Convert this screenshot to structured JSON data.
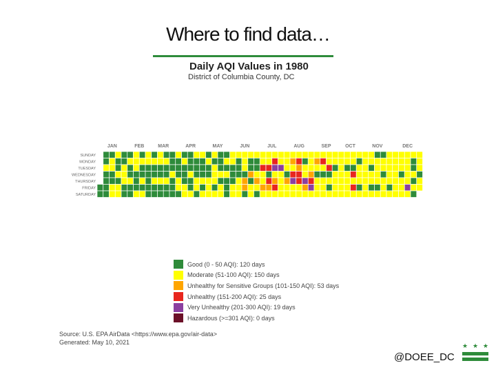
{
  "slide": {
    "title": "Where to find data…"
  },
  "colors": {
    "good": "#2e8b3a",
    "moderate": "#ffff00",
    "usg": "#ffa500",
    "unhealthy": "#e8261e",
    "very_unhealthy": "#8b3fa0",
    "hazardous": "#6b1028",
    "accent": "#2e8b3a"
  },
  "chart_data": {
    "type": "heatmap",
    "title": "Daily AQI Values in 1980",
    "subtitle": "District of Columbia County, DC",
    "year": 1980,
    "months": [
      "JAN",
      "FEB",
      "MAR",
      "APR",
      "MAY",
      "JUN",
      "JUL",
      "AUG",
      "SEP",
      "OCT",
      "NOV",
      "DEC"
    ],
    "weekdays": [
      "SUNDAY",
      "MONDAY",
      "TUESDAY",
      "WEDNESDAY",
      "THURSDAY",
      "FRIDAY",
      "SATURDAY"
    ],
    "weeks": [
      "-----GG",
      "GGYGGGG",
      "GYYGGYY",
      "YGGYGYY",
      "GGYYYGG",
      "GYGGYGG",
      "YYYGGGY",
      "GYGGYGY",
      "YYGGGGG",
      "GYGGYGG",
      "YYGGYGG",
      "GYGGYGG",
      "GGGYGGG",
      "YGGGYYG",
      "GYGGGYY",
      "GGGYGGY",
      "YGGGYYG",
      "YGGGYGY",
      "GYGGYYY",
      "YGYYYGY",
      "GGGYGYY",
      "GYGYGGG",
      "YYGGGYY",
      "YGGGYYY",
      "YYYGOOG",
      "YGGOGYY",
      "YGGYOYG",
      "YYRYYOY",
      "YYRGROY",
      "YRUYORY",
      "YYUYYYY",
      "YYYGOYY",
      "YOYRUYY",
      "YRORRYY",
      "YGYYUOY",
      "YYYORUY",
      "YOYGYYY",
      "YRYGYYY",
      "YYRGYGY",
      "YYGYYYY",
      "YYYYYYY",
      "YYGYYYY",
      "YYGRYRY",
      "YGYYYGY",
      "YYYYYYY",
      "YYGYYGY",
      "GYYYYGY",
      "GYYGYYY",
      "YYYYYGY",
      "YYYYYYY",
      "YYYGYYY",
      "YYYYYUY",
      "YGGYGYG",
      "YYYGYY-"
    ],
    "legend": [
      {
        "key": "good",
        "label": "Good (0 - 50 AQI): 120 days",
        "days": 120
      },
      {
        "key": "moderate",
        "label": "Moderate (51-100 AQI): 150 days",
        "days": 150
      },
      {
        "key": "usg",
        "label": "Unhealthy for Sensitive Groups (101-150 AQI): 53 days",
        "days": 53
      },
      {
        "key": "unhealthy",
        "label": "Unhealthy (151-200 AQI): 25 days",
        "days": 25
      },
      {
        "key": "very_unhealthy",
        "label": "Very Unhealthy (201-300 AQI): 19 days",
        "days": 19
      },
      {
        "key": "hazardous",
        "label": "Hazardous (>=301 AQI): 0 days",
        "days": 0
      }
    ]
  },
  "source": {
    "line1": "Source: U.S. EPA AirData <https://www.epa.gov/air-data>",
    "line2": "Generated:      May 10, 2021"
  },
  "footer": {
    "handle": "@DOEE_DC",
    "flag_stars": [
      "★",
      "★",
      "★"
    ]
  }
}
